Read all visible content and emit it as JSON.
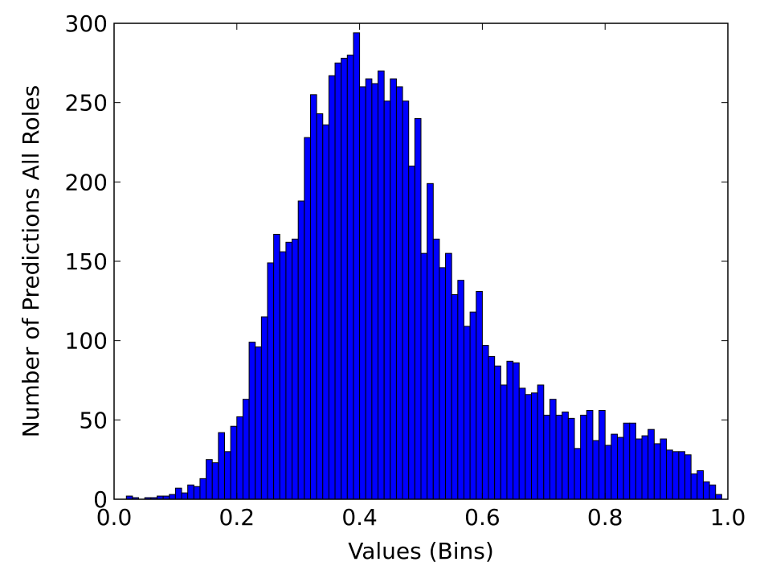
{
  "chart_data": {
    "type": "histogram",
    "x_label": "Values (Bins)",
    "y_label": "Number of Predictions All Roles",
    "color": "#0000ff",
    "bins": [
      0,
      0.01,
      0.02,
      0.03,
      0.04,
      0.05,
      0.06,
      0.07,
      0.08,
      0.09,
      0.1,
      0.11,
      0.12,
      0.13,
      0.14,
      0.15,
      0.16,
      0.17,
      0.18,
      0.19,
      0.2,
      0.21,
      0.22,
      0.23,
      0.24,
      0.25,
      0.26,
      0.27,
      0.28,
      0.29,
      0.3,
      0.31,
      0.32,
      0.33,
      0.34,
      0.35,
      0.36,
      0.37,
      0.38,
      0.39,
      0.4,
      0.41,
      0.42,
      0.43,
      0.44,
      0.45,
      0.46,
      0.47,
      0.48,
      0.49,
      0.5,
      0.51,
      0.52,
      0.53,
      0.54,
      0.55,
      0.56,
      0.57,
      0.58,
      0.59,
      0.6,
      0.61,
      0.62,
      0.63,
      0.64,
      0.65,
      0.66,
      0.67,
      0.68,
      0.69,
      0.7,
      0.71,
      0.72,
      0.73,
      0.74,
      0.75,
      0.76,
      0.77,
      0.78,
      0.79,
      0.8,
      0.81,
      0.82,
      0.83,
      0.84,
      0.85,
      0.86,
      0.87,
      0.88,
      0.89,
      0.9,
      0.91,
      0.92,
      0.93,
      0.94,
      0.95,
      0.96,
      0.97,
      0.98,
      0.99,
      1
    ],
    "values": [
      0,
      0,
      2,
      1,
      0,
      1,
      1,
      2,
      2,
      3,
      7,
      4,
      9,
      8,
      13,
      25,
      23,
      42,
      30,
      46,
      52,
      63,
      99,
      96,
      115,
      149,
      167,
      156,
      162,
      164,
      188,
      228,
      255,
      243,
      236,
      267,
      275,
      278,
      280,
      294,
      260,
      265,
      262,
      270,
      251,
      265,
      260,
      251,
      210,
      240,
      155,
      199,
      164,
      146,
      155,
      129,
      138,
      109,
      118,
      131,
      97,
      90,
      84,
      72,
      87,
      86,
      70,
      66,
      67,
      72,
      53,
      63,
      53,
      55,
      51,
      32,
      53,
      56,
      37,
      56,
      34,
      41,
      39,
      48,
      48,
      38,
      40,
      44,
      35,
      38,
      31,
      30,
      30,
      28,
      16,
      18,
      11,
      9,
      3,
      0
    ],
    "xlim": [
      0,
      1
    ],
    "xticks": [
      {
        "value": 0,
        "label": "0.0"
      },
      0.2,
      0.4,
      0.6,
      0.8,
      {
        "value": 1,
        "label": "1.0"
      }
    ],
    "ylim": [
      0,
      300
    ],
    "yticks": [
      0,
      50,
      100,
      150,
      200,
      250,
      300
    ]
  }
}
